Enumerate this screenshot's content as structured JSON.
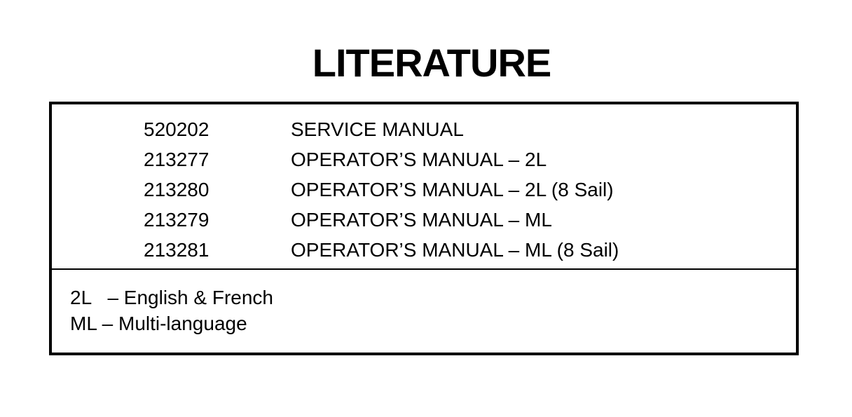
{
  "title": "LITERATURE",
  "items": [
    {
      "part_number": "520202",
      "description": "SERVICE MANUAL"
    },
    {
      "part_number": "213277",
      "description": "OPERATOR’S MANUAL – 2L"
    },
    {
      "part_number": "213280",
      "description": "OPERATOR’S MANUAL – 2L (8 Sail)"
    },
    {
      "part_number": "213279",
      "description": "OPERATOR’S MANUAL – ML"
    },
    {
      "part_number": "213281",
      "description": "OPERATOR’S MANUAL – ML (8 Sail)"
    }
  ],
  "notes": [
    "2L   – English & French",
    "ML – Multi-language"
  ]
}
